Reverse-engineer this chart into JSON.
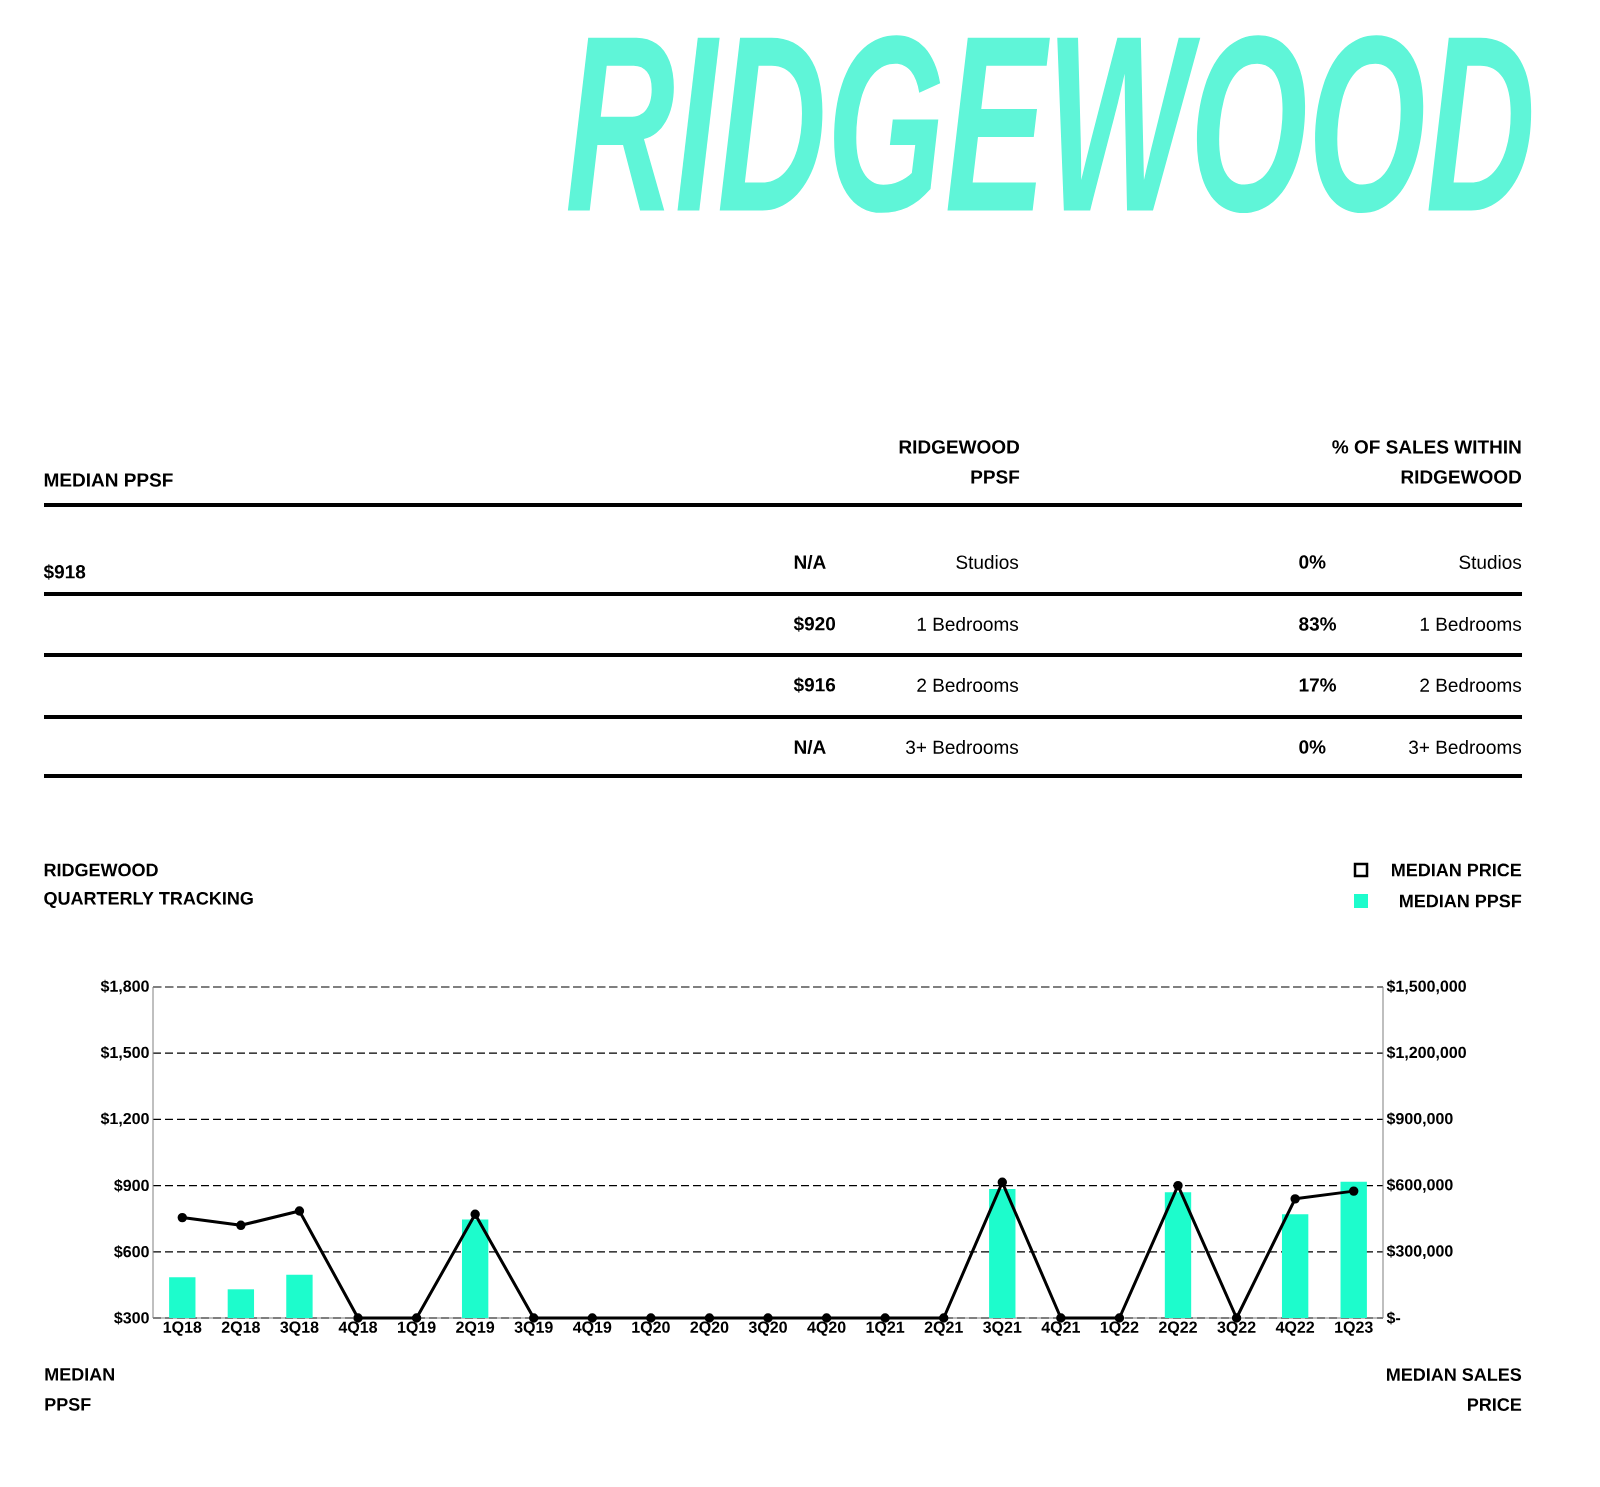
{
  "chart_data": [
    {
      "type": "other",
      "title": "RIDGEWOOD",
      "annotations": [
        "MEDIAN PPSF",
        "RIDGEWOOD PPSF",
        "% OF SALES WITHIN RIDGEWOOD",
        "$918",
        "N/A",
        "Studios",
        "0%",
        "Studios",
        "$920",
        "1 Bedrooms",
        "83%",
        "1 Bedrooms",
        "$916",
        "2 Bedrooms",
        "17%",
        "2 Bedrooms",
        "N/A",
        "3+ Bedrooms",
        "0%",
        "3+ Bedrooms"
      ]
    },
    {
      "type": "bar",
      "title": "RIDGEWOOD",
      "subtitle": "QUARTERLY TRACKING",
      "ylabel": "MEDIAN PPSF",
      "y2label": "MEDIAN SALES PRICE",
      "categories": [
        "1Q18",
        "2Q18",
        "3Q18",
        "4Q18",
        "1Q19",
        "2Q19",
        "3Q19",
        "4Q19",
        "1Q20",
        "2Q20",
        "3Q20",
        "4Q20",
        "1Q21",
        "2Q21",
        "3Q21",
        "4Q21",
        "1Q22",
        "2Q22",
        "3Q22",
        "4Q22",
        "1Q23"
      ],
      "series": [
        {
          "name": "MEDIAN PRICE",
          "type": "line",
          "axis": "y2",
          "color": "#000000",
          "marker": "circle",
          "values": [
            455000,
            420000,
            485000,
            0,
            0,
            470000,
            0,
            0,
            0,
            0,
            0,
            0,
            0,
            0,
            615000,
            0,
            0,
            600000,
            0,
            540000,
            575000
          ]
        },
        {
          "name": "MEDIAN PPSF",
          "color": "#1dfccc",
          "values": [
            485,
            430,
            496,
            null,
            null,
            746,
            null,
            null,
            null,
            null,
            null,
            null,
            null,
            null,
            885,
            null,
            null,
            870,
            null,
            770,
            918
          ]
        }
      ],
      "ylim": [
        300,
        1800
      ],
      "yticks": [
        {
          "value": 300,
          "label": "$300"
        },
        {
          "value": 600,
          "label": "$600"
        },
        {
          "value": 900,
          "label": "$900"
        },
        {
          "value": 1200,
          "label": "$1,200"
        },
        {
          "value": 1500,
          "label": "$1,500"
        },
        {
          "value": 1800,
          "label": "$1,800"
        }
      ],
      "y2lim": [
        0,
        1500000
      ],
      "y2ticks": [
        {
          "value": 0,
          "label": "$-"
        },
        {
          "value": 300000,
          "label": "$300,000"
        },
        {
          "value": 600000,
          "label": "$600,000"
        },
        {
          "value": 900000,
          "label": "$900,000"
        },
        {
          "value": 1200000,
          "label": "$1,200,000"
        },
        {
          "value": 1500000,
          "label": "$1,500,000"
        }
      ],
      "grid": "y",
      "legend": "top right"
    }
  ]
}
